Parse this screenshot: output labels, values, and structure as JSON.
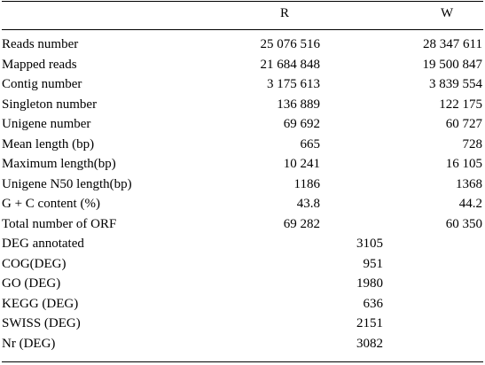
{
  "columns": {
    "r": "R",
    "w": "W"
  },
  "rows": [
    {
      "label": "Reads number",
      "r": "25 076 516",
      "w": "28 347 611"
    },
    {
      "label": "Mapped reads",
      "r": "21 684 848",
      "w": "19 500 847"
    },
    {
      "label": "Contig number",
      "r": "3 175 613",
      "w": "3 839 554"
    },
    {
      "label": "Singleton number",
      "r": "136 889",
      "w": "122 175"
    },
    {
      "label": "Unigene number",
      "r": "69 692",
      "w": "60 727"
    },
    {
      "label": "Mean length (bp)",
      "r": "665",
      "w": "728"
    },
    {
      "label": "Maximum length(bp)",
      "r": "10 241",
      "w": "16 105"
    },
    {
      "label": "Unigene N50 length(bp)",
      "r": "1186",
      "w": "1368"
    },
    {
      "label": "G + C content (%)",
      "r": "43.8",
      "w": "44.2"
    },
    {
      "label": "Total number of ORF",
      "r": "69 282",
      "w": "60 350"
    }
  ],
  "deg_rows": [
    {
      "label": "DEG annotated",
      "value": "3105"
    },
    {
      "label": "COG(DEG)",
      "value": "951"
    },
    {
      "label": "GO (DEG)",
      "value": "1980"
    },
    {
      "label": "KEGG (DEG)",
      "value": "636"
    },
    {
      "label": "SWISS (DEG)",
      "value": "2151"
    },
    {
      "label": "Nr (DEG)",
      "value": "3082"
    }
  ]
}
